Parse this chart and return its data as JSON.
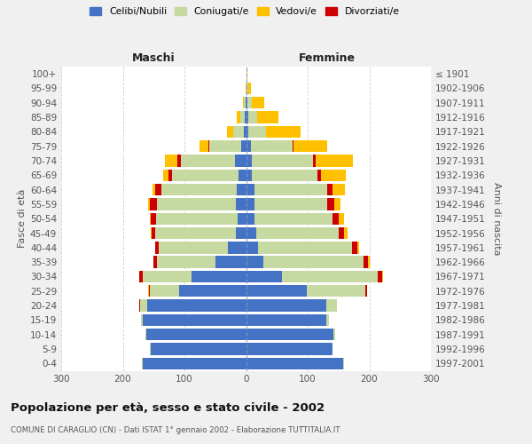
{
  "age_groups": [
    "0-4",
    "5-9",
    "10-14",
    "15-19",
    "20-24",
    "25-29",
    "30-34",
    "35-39",
    "40-44",
    "45-49",
    "50-54",
    "55-59",
    "60-64",
    "65-69",
    "70-74",
    "75-79",
    "80-84",
    "85-89",
    "90-94",
    "95-99",
    "100+"
  ],
  "birth_years": [
    "1997-2001",
    "1992-1996",
    "1987-1991",
    "1982-1986",
    "1977-1981",
    "1972-1976",
    "1967-1971",
    "1962-1966",
    "1957-1961",
    "1952-1956",
    "1947-1951",
    "1942-1946",
    "1937-1941",
    "1932-1936",
    "1927-1931",
    "1922-1926",
    "1917-1921",
    "1912-1916",
    "1907-1911",
    "1902-1906",
    "≤ 1901"
  ],
  "males": {
    "celibe": [
      168,
      155,
      162,
      168,
      160,
      108,
      88,
      50,
      30,
      17,
      14,
      16,
      15,
      12,
      18,
      8,
      3,
      2,
      1,
      0,
      0
    ],
    "coniugato": [
      1,
      1,
      1,
      2,
      12,
      48,
      80,
      95,
      112,
      130,
      132,
      128,
      122,
      108,
      88,
      52,
      18,
      8,
      2,
      0,
      0
    ],
    "vedovo": [
      0,
      0,
      0,
      0,
      0,
      1,
      1,
      1,
      1,
      1,
      2,
      3,
      5,
      8,
      20,
      15,
      10,
      5,
      2,
      1,
      0
    ],
    "divorziato": [
      0,
      0,
      0,
      0,
      1,
      2,
      5,
      5,
      5,
      6,
      8,
      12,
      10,
      6,
      5,
      1,
      0,
      0,
      0,
      0,
      0
    ]
  },
  "females": {
    "nubile": [
      158,
      140,
      142,
      130,
      130,
      98,
      58,
      28,
      20,
      16,
      13,
      13,
      13,
      10,
      10,
      8,
      4,
      3,
      2,
      1,
      0
    ],
    "coniugata": [
      1,
      1,
      2,
      5,
      18,
      95,
      155,
      162,
      152,
      135,
      128,
      118,
      118,
      106,
      98,
      68,
      28,
      15,
      8,
      2,
      1
    ],
    "vedova": [
      0,
      0,
      0,
      0,
      0,
      1,
      2,
      3,
      4,
      6,
      8,
      10,
      20,
      40,
      60,
      55,
      55,
      35,
      20,
      5,
      1
    ],
    "divorziata": [
      0,
      0,
      0,
      0,
      0,
      3,
      8,
      8,
      8,
      8,
      10,
      12,
      10,
      6,
      5,
      1,
      1,
      0,
      0,
      0,
      0
    ]
  },
  "colors": {
    "celibe": "#4472c4",
    "coniugato": "#c5d9a0",
    "vedovo": "#ffc000",
    "divorziato": "#cc0000"
  },
  "legend_labels": [
    "Celibi/Nubili",
    "Coniugati/e",
    "Vedovi/e",
    "Divorziati/e"
  ],
  "title": "Popolazione per età, sesso e stato civile - 2002",
  "subtitle": "COMUNE DI CARAGLIO (CN) - Dati ISTAT 1° gennaio 2002 - Elaborazione TUTTITALIA.IT",
  "xlabel_left": "Maschi",
  "xlabel_right": "Femmine",
  "ylabel_left": "Fasce di età",
  "ylabel_right": "Anni di nascita",
  "xlim": 300,
  "bg_color": "#f0f0f0",
  "plot_bg_color": "#ffffff",
  "grid_color": "#cccccc"
}
